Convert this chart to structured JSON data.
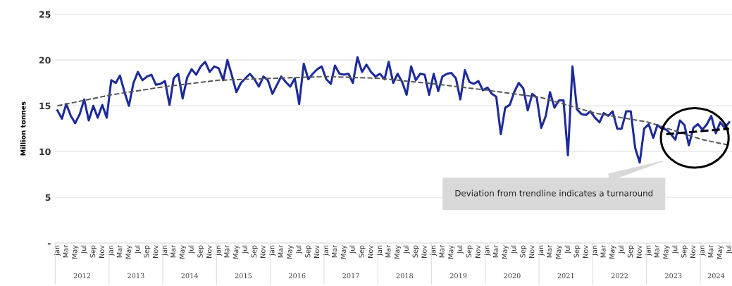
{
  "chart_data": {
    "type": "line",
    "ylabel": "Million tonnes",
    "x": [
      "2012-01",
      "2012-02",
      "2012-03",
      "2012-04",
      "2012-05",
      "2012-06",
      "2012-07",
      "2012-08",
      "2012-09",
      "2012-10",
      "2012-11",
      "2012-12",
      "2013-01",
      "2013-02",
      "2013-03",
      "2013-04",
      "2013-05",
      "2013-06",
      "2013-07",
      "2013-08",
      "2013-09",
      "2013-10",
      "2013-11",
      "2013-12",
      "2014-01",
      "2014-02",
      "2014-03",
      "2014-04",
      "2014-05",
      "2014-06",
      "2014-07",
      "2014-08",
      "2014-09",
      "2014-10",
      "2014-11",
      "2014-12",
      "2015-01",
      "2015-02",
      "2015-03",
      "2015-04",
      "2015-05",
      "2015-06",
      "2015-07",
      "2015-08",
      "2015-09",
      "2015-10",
      "2015-11",
      "2015-12",
      "2016-01",
      "2016-02",
      "2016-03",
      "2016-04",
      "2016-05",
      "2016-06",
      "2016-07",
      "2016-08",
      "2016-09",
      "2016-10",
      "2016-11",
      "2016-12",
      "2017-01",
      "2017-02",
      "2017-03",
      "2017-04",
      "2017-05",
      "2017-06",
      "2017-07",
      "2017-08",
      "2017-09",
      "2017-10",
      "2017-11",
      "2017-12",
      "2018-01",
      "2018-02",
      "2018-03",
      "2018-04",
      "2018-05",
      "2018-06",
      "2018-07",
      "2018-08",
      "2018-09",
      "2018-10",
      "2018-11",
      "2018-12",
      "2019-01",
      "2019-02",
      "2019-03",
      "2019-04",
      "2019-05",
      "2019-06",
      "2019-07",
      "2019-08",
      "2019-09",
      "2019-10",
      "2019-11",
      "2019-12",
      "2020-01",
      "2020-02",
      "2020-03",
      "2020-04",
      "2020-05",
      "2020-06",
      "2020-07",
      "2020-08",
      "2020-09",
      "2020-10",
      "2020-11",
      "2020-12",
      "2021-01",
      "2021-02",
      "2021-03",
      "2021-04",
      "2021-05",
      "2021-06",
      "2021-07",
      "2021-08",
      "2021-09",
      "2021-10",
      "2021-11",
      "2021-12",
      "2022-01",
      "2022-02",
      "2022-03",
      "2022-04",
      "2022-05",
      "2022-06",
      "2022-07",
      "2022-08",
      "2022-09",
      "2022-10",
      "2022-11",
      "2022-12",
      "2023-01",
      "2023-02",
      "2023-03",
      "2023-04",
      "2023-05",
      "2023-06",
      "2023-07",
      "2023-08",
      "2023-09",
      "2023-10",
      "2023-11",
      "2023-12",
      "2024-01",
      "2024-02",
      "2024-03",
      "2024-04",
      "2024-05",
      "2024-06",
      "2024-07"
    ],
    "series": [
      {
        "color": "#1c2b99",
        "line_style": "solid",
        "values": [
          14.5,
          13.6,
          15.2,
          13.9,
          13.1,
          14.1,
          15.7,
          13.4,
          15.0,
          13.7,
          15.1,
          13.7,
          17.8,
          17.5,
          18.3,
          16.5,
          15.0,
          17.5,
          18.7,
          17.8,
          18.2,
          18.4,
          17.3,
          17.4,
          17.7,
          15.1,
          18.0,
          18.5,
          15.8,
          18.1,
          19.0,
          18.4,
          19.3,
          19.8,
          18.7,
          19.3,
          19.1,
          17.8,
          20.0,
          18.3,
          16.5,
          17.5,
          18.0,
          18.5,
          17.9,
          17.1,
          18.2,
          17.8,
          16.3,
          17.3,
          18.2,
          17.6,
          17.1,
          18.0,
          15.2,
          19.6,
          17.9,
          18.5,
          19.0,
          19.3,
          17.9,
          17.4,
          19.4,
          18.5,
          18.4,
          18.5,
          17.5,
          20.3,
          18.7,
          19.5,
          18.7,
          18.2,
          18.5,
          17.9,
          19.8,
          17.5,
          18.5,
          17.6,
          16.2,
          19.3,
          17.8,
          18.5,
          18.4,
          16.2,
          18.5,
          16.6,
          18.2,
          18.5,
          18.6,
          18.0,
          15.7,
          18.9,
          17.6,
          17.4,
          17.7,
          16.7,
          17.0,
          16.3,
          16.0,
          11.9,
          14.8,
          15.1,
          16.5,
          17.5,
          16.9,
          14.5,
          16.3,
          15.9,
          12.6,
          13.9,
          16.5,
          14.8,
          15.6,
          15.6,
          9.6,
          19.3,
          14.6,
          14.1,
          14.0,
          14.4,
          13.7,
          13.2,
          14.2,
          13.9,
          14.4,
          12.5,
          12.5,
          14.4,
          14.4,
          10.4,
          8.8,
          12.5,
          13.0,
          11.5,
          12.9,
          12.5,
          12.4,
          11.9,
          11.3,
          13.4,
          12.9,
          10.7,
          12.6,
          13.0,
          12.4,
          13.0,
          13.9,
          12.0,
          13.2,
          12.6,
          13.2
        ]
      },
      {
        "type": "line",
        "color": "#555555",
        "line_style": "dashed",
        "x": [
          "2012-01",
          "2013-01",
          "2014-01",
          "2015-01",
          "2016-01",
          "2017-01",
          "2018-01",
          "2019-01",
          "2020-01",
          "2021-01",
          "2022-01",
          "2023-01",
          "2024-01",
          "2024-07"
        ],
        "values": [
          15.0,
          16.2,
          17.1,
          17.8,
          18.0,
          18.2,
          18.0,
          17.4,
          16.7,
          15.9,
          14.2,
          13.2,
          11.3,
          10.7
        ]
      },
      {
        "type": "line",
        "color": "#000000",
        "line_style": "dashed",
        "x": [
          "2023-05",
          "2024-07"
        ],
        "values": [
          11.9,
          12.5
        ]
      }
    ],
    "xlim": [
      "2011-12-15",
      "2024-07-20"
    ],
    "xticks": [
      {
        "value": "2012-01",
        "label": "Jan"
      },
      {
        "value": "2012-03",
        "label": "Mar"
      },
      {
        "value": "2012-05",
        "label": "May"
      },
      {
        "value": "2012-07",
        "label": "Jul"
      },
      {
        "value": "2012-09",
        "label": "Sep"
      },
      {
        "value": "2012-11",
        "label": "Nov"
      },
      {
        "value": "2013-01",
        "label": "Jan"
      },
      {
        "value": "2013-03",
        "label": "Mar"
      },
      {
        "value": "2013-05",
        "label": "May"
      },
      {
        "value": "2013-07",
        "label": "Jul"
      },
      {
        "value": "2013-09",
        "label": "Sep"
      },
      {
        "value": "2013-11",
        "label": "Nov"
      },
      {
        "value": "2014-01",
        "label": "Jan"
      },
      {
        "value": "2014-03",
        "label": "Mar"
      },
      {
        "value": "2014-05",
        "label": "May"
      },
      {
        "value": "2014-07",
        "label": "Jul"
      },
      {
        "value": "2014-09",
        "label": "Sep"
      },
      {
        "value": "2014-11",
        "label": "Nov"
      },
      {
        "value": "2015-01",
        "label": "Jan"
      },
      {
        "value": "2015-03",
        "label": "Mar"
      },
      {
        "value": "2015-05",
        "label": "May"
      },
      {
        "value": "2015-07",
        "label": "Jul"
      },
      {
        "value": "2015-09",
        "label": "Sep"
      },
      {
        "value": "2015-11",
        "label": "Nov"
      },
      {
        "value": "2016-01",
        "label": "Jan"
      },
      {
        "value": "2016-03",
        "label": "Mar"
      },
      {
        "value": "2016-05",
        "label": "May"
      },
      {
        "value": "2016-07",
        "label": "Jul"
      },
      {
        "value": "2016-09",
        "label": "Sep"
      },
      {
        "value": "2016-11",
        "label": "Nov"
      },
      {
        "value": "2017-01",
        "label": "Jan"
      },
      {
        "value": "2017-03",
        "label": "Mar"
      },
      {
        "value": "2017-05",
        "label": "May"
      },
      {
        "value": "2017-07",
        "label": "Jul"
      },
      {
        "value": "2017-09",
        "label": "Sep"
      },
      {
        "value": "2017-11",
        "label": "Nov"
      },
      {
        "value": "2018-01",
        "label": "Jan"
      },
      {
        "value": "2018-03",
        "label": "Mar"
      },
      {
        "value": "2018-05",
        "label": "May"
      },
      {
        "value": "2018-07",
        "label": "Jul"
      },
      {
        "value": "2018-09",
        "label": "Sep"
      },
      {
        "value": "2018-11",
        "label": "Nov"
      },
      {
        "value": "2019-01",
        "label": "Jan"
      },
      {
        "value": "2019-03",
        "label": "Mar"
      },
      {
        "value": "2019-05",
        "label": "May"
      },
      {
        "value": "2019-07",
        "label": "Jul"
      },
      {
        "value": "2019-09",
        "label": "Sep"
      },
      {
        "value": "2019-11",
        "label": "Nov"
      },
      {
        "value": "2020-01",
        "label": "Jan"
      },
      {
        "value": "2020-03",
        "label": "Mar"
      },
      {
        "value": "2020-05",
        "label": "May"
      },
      {
        "value": "2020-07",
        "label": "Jul"
      },
      {
        "value": "2020-09",
        "label": "Sep"
      },
      {
        "value": "2020-11",
        "label": "Nov"
      },
      {
        "value": "2021-01",
        "label": "Jan"
      },
      {
        "value": "2021-03",
        "label": "Mar"
      },
      {
        "value": "2021-05",
        "label": "May"
      },
      {
        "value": "2021-07",
        "label": "Jul"
      },
      {
        "value": "2021-09",
        "label": "Sep"
      },
      {
        "value": "2021-11",
        "label": "Nov"
      },
      {
        "value": "2022-01",
        "label": "Jan"
      },
      {
        "value": "2022-03",
        "label": "Mar"
      },
      {
        "value": "2022-05",
        "label": "May"
      },
      {
        "value": "2022-07",
        "label": "Jul"
      },
      {
        "value": "2022-09",
        "label": "Sep"
      },
      {
        "value": "2022-11",
        "label": "Nov"
      },
      {
        "value": "2023-01",
        "label": "Jan"
      },
      {
        "value": "2023-03",
        "label": "Mar"
      },
      {
        "value": "2023-05",
        "label": "May"
      },
      {
        "value": "2023-07",
        "label": "Jul"
      },
      {
        "value": "2023-09",
        "label": "Sep"
      },
      {
        "value": "2023-11",
        "label": "Nov"
      },
      {
        "value": "2024-01",
        "label": "Jan"
      },
      {
        "value": "2024-03",
        "label": "Mar"
      },
      {
        "value": "2024-05",
        "label": "May"
      },
      {
        "value": "2024-07",
        "label": "Jul"
      }
    ],
    "ylim": [
      0,
      25
    ],
    "yticks": [
      {
        "value": 0,
        "label": "-"
      },
      5,
      10,
      15,
      20,
      25
    ],
    "grid": "y",
    "marker": "none",
    "annotations": [
      "2012",
      "2013",
      "2014",
      "2015",
      "2016",
      "2017",
      "2018",
      "2019",
      "2020",
      "2021",
      "2022",
      "2023",
      "2024",
      "Deviation from trendline indicates a turnaround"
    ]
  }
}
